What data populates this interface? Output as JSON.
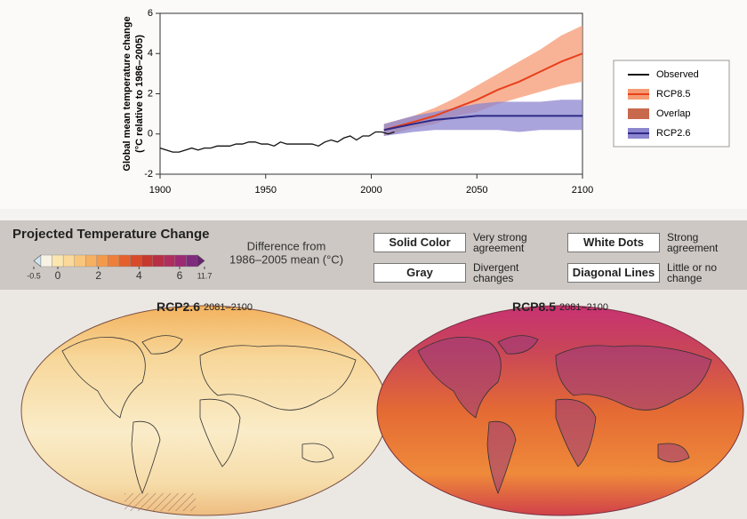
{
  "chart_data": [
    {
      "type": "line",
      "ylabel": [
        "Global mean temperature change",
        "(°C relative to 1986–2005)"
      ],
      "xlim": [
        1900,
        2100
      ],
      "xticks": [
        1900,
        1950,
        2000,
        2050,
        2100
      ],
      "ylim": [
        -2,
        6
      ],
      "yticks": [
        -2,
        0,
        2,
        4,
        6
      ],
      "series": [
        {
          "name": "Observed",
          "color": "#111111",
          "x": [
            1900,
            1903,
            1906,
            1909,
            1912,
            1915,
            1918,
            1921,
            1924,
            1927,
            1930,
            1933,
            1936,
            1939,
            1942,
            1945,
            1948,
            1951,
            1954,
            1957,
            1960,
            1963,
            1966,
            1969,
            1972,
            1975,
            1978,
            1981,
            1984,
            1987,
            1990,
            1993,
            1996,
            1999,
            2002,
            2005,
            2008,
            2011
          ],
          "values": [
            -0.7,
            -0.8,
            -0.9,
            -0.9,
            -0.8,
            -0.7,
            -0.8,
            -0.7,
            -0.7,
            -0.6,
            -0.6,
            -0.6,
            -0.5,
            -0.5,
            -0.4,
            -0.4,
            -0.5,
            -0.5,
            -0.6,
            -0.4,
            -0.5,
            -0.5,
            -0.5,
            -0.5,
            -0.5,
            -0.6,
            -0.4,
            -0.3,
            -0.4,
            -0.2,
            -0.1,
            -0.3,
            -0.1,
            -0.1,
            0.1,
            0.1,
            0.0,
            0.1
          ]
        },
        {
          "name": "RCP8.5",
          "color": "#e8401c",
          "band_color": "#f59a73",
          "x": [
            2006,
            2020,
            2030,
            2040,
            2050,
            2060,
            2070,
            2080,
            2090,
            2100
          ],
          "values": [
            0.2,
            0.6,
            0.9,
            1.3,
            1.7,
            2.2,
            2.6,
            3.1,
            3.6,
            4.0
          ],
          "upper": [
            0.5,
            0.9,
            1.3,
            1.8,
            2.4,
            3.0,
            3.6,
            4.2,
            4.9,
            5.4
          ],
          "lower": [
            -0.1,
            0.3,
            0.5,
            0.9,
            1.1,
            1.5,
            1.8,
            2.1,
            2.4,
            2.6
          ]
        },
        {
          "name": "RCP2.6",
          "color": "#2e2a86",
          "band_color": "#8c86cf",
          "x": [
            2006,
            2020,
            2030,
            2040,
            2050,
            2060,
            2070,
            2080,
            2090,
            2100
          ],
          "values": [
            0.2,
            0.5,
            0.7,
            0.8,
            0.9,
            0.9,
            0.9,
            0.9,
            0.9,
            0.9
          ],
          "upper": [
            0.5,
            0.9,
            1.1,
            1.3,
            1.5,
            1.6,
            1.6,
            1.6,
            1.7,
            1.7
          ],
          "lower": [
            -0.1,
            0.1,
            0.2,
            0.2,
            0.2,
            0.2,
            0.1,
            0.2,
            0.2,
            0.2
          ]
        }
      ],
      "overlap": {
        "name": "Overlap",
        "color": "#c8684c"
      }
    },
    {
      "type": "colorbar",
      "title": "Projected Temperature Change",
      "caption": [
        "Difference from",
        "1986–2005 mean (°C)"
      ],
      "ticks": [
        -0.5,
        0,
        2,
        4,
        6,
        11.7
      ],
      "colors": [
        "#f7f2e4",
        "#fbe6b0",
        "#fbd99a",
        "#f9c67e",
        "#f6b062",
        "#f39a4a",
        "#ee7f38",
        "#e4612c",
        "#d84a2a",
        "#c7392f",
        "#b82f44",
        "#b02d5f",
        "#9c2a73",
        "#7f2a7d"
      ],
      "legend": [
        {
          "label": "Solid Color",
          "text": "Very strong agreement"
        },
        {
          "label": "Gray",
          "text": "Divergent changes"
        },
        {
          "label": "White Dots",
          "text": "Strong agreement"
        },
        {
          "label": "Diagonal Lines",
          "text": "Little or no change"
        }
      ],
      "maps": [
        {
          "title": "RCP2.6",
          "period": "2081–2100"
        },
        {
          "title": "RCP8.5",
          "period": "2081–2100"
        }
      ]
    }
  ]
}
